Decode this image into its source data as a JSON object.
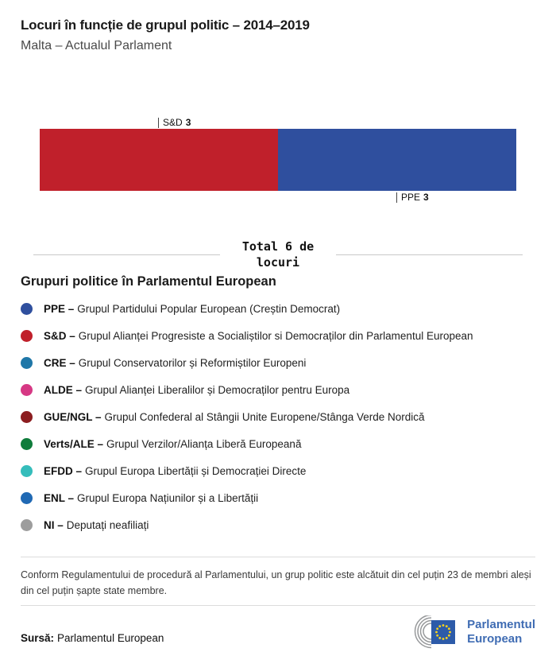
{
  "header": {
    "title": "Locuri în funcție de grupul politic – 2014–2019",
    "subtitle": "Malta – Actualul Parlament"
  },
  "chart_data": {
    "type": "bar",
    "orientation": "horizontal-stacked",
    "title": "Locuri în funcție de grupul politic – 2014–2019",
    "subtitle": "Malta – Actualul Parlament",
    "total_seats": 6,
    "total_label_line1": "Total 6 de",
    "total_label_line2": "locuri",
    "series": [
      {
        "name": "S&D",
        "value": 3,
        "color": "#C0202B",
        "label_position": "above"
      },
      {
        "name": "PPE",
        "value": 3,
        "color": "#2F4F9E",
        "label_position": "below"
      }
    ],
    "xlim": [
      0,
      6
    ],
    "legend_position": "below"
  },
  "legend": {
    "heading": "Grupuri politice în Parlamentul European",
    "items": [
      {
        "abbr": "PPE –",
        "desc": "Grupul Partidului Popular European (Creștin Democrat)",
        "color": "#2F4F9E"
      },
      {
        "abbr": "S&D –",
        "desc": "Grupul Alianței Progresiste a Socialiștilor si Democraților din Parlamentul European",
        "color": "#C0202B"
      },
      {
        "abbr": "CRE –",
        "desc": "Grupul Conservatorilor și Reformiștilor Europeni",
        "color": "#1F77A8"
      },
      {
        "abbr": "ALDE –",
        "desc": "Grupul Alianței Liberalilor și Democraților pentru Europa",
        "color": "#D63884"
      },
      {
        "abbr": "GUE/NGL –",
        "desc": "Grupul Confederal al Stângii Unite Europene/Stânga Verde Nordică",
        "color": "#8C1D20"
      },
      {
        "abbr": "Verts/ALE –",
        "desc": "Grupul Verzilor/Alianța Liberă Europeană",
        "color": "#0F7C3B"
      },
      {
        "abbr": "EFDD –",
        "desc": "Grupul Europa Libertății și Democrației Directe",
        "color": "#35BDBB"
      },
      {
        "abbr": "ENL –",
        "desc": "Grupul Europa Națiunilor și a Libertății",
        "color": "#2069B4"
      },
      {
        "abbr": "NI –",
        "desc": "Deputați neafiliați",
        "color": "#9D9D9D"
      }
    ]
  },
  "footnote": "Conform Regulamentului de procedură al Parlamentului, un grup politic este alcătuit din cel puțin 23 de membri aleși din cel puțin șapte state membre.",
  "source": {
    "label": "Sursă:",
    "value": "Parlamentul European"
  },
  "logo": {
    "line1": "Parlamentul",
    "line2": "European",
    "color": "#3F6CB3"
  }
}
